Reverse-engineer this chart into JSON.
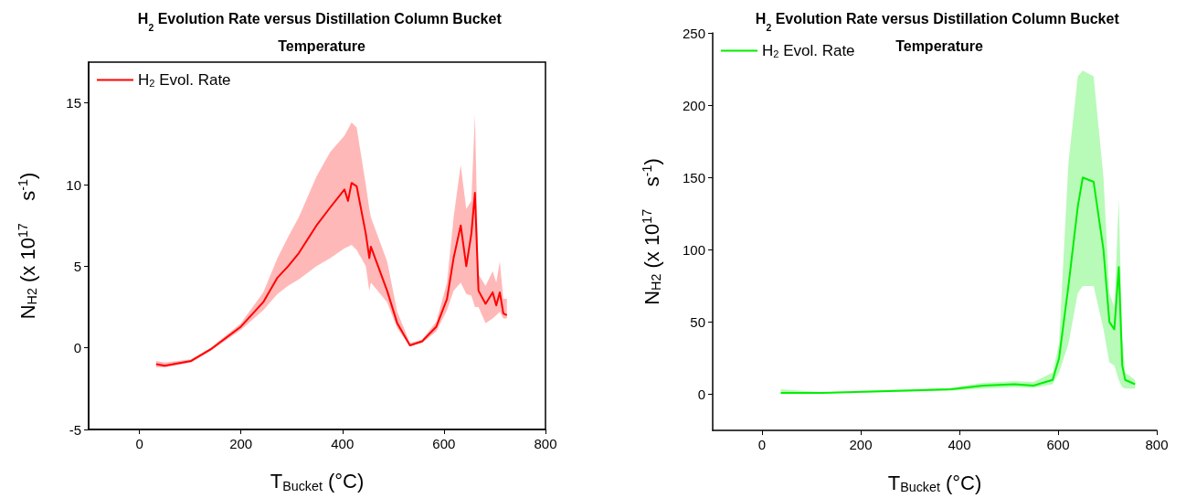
{
  "chart_data": [
    {
      "type": "line",
      "title": "H$_{2}$ Evolution Rate versus Distillation Column Bucket Temperature",
      "xlabel": "T$_{Bucket}$ (°C)",
      "ylabel": "N$_{H2}$ (x 10$^{17}$    s$^{-1}$)",
      "xlim": [
        -100,
        800
      ],
      "xticks": [
        0,
        200,
        400,
        600,
        800
      ],
      "ylim": [
        -5,
        17.5
      ],
      "yticks": [
        -5,
        0,
        5,
        10,
        15
      ],
      "grid": false,
      "legend": "top left",
      "marker": "none",
      "line_style": "solid",
      "series": [
        {
          "name": "H$_{2}$ Evol. Rate",
          "color": "#ff0000",
          "x": [
            33,
            50,
            102,
            140,
            200,
            244,
            272,
            293,
            314,
            349,
            376,
            404,
            411,
            418,
            428,
            446,
            453,
            456,
            488,
            508,
            533,
            557,
            585,
            606,
            619,
            633,
            644,
            654,
            661,
            668,
            682,
            696,
            703,
            710,
            717,
            724
          ],
          "values": [
            -1.0,
            -1.1,
            -0.8,
            -0.1,
            1.3,
            2.8,
            4.3,
            5.0,
            5.8,
            7.5,
            8.6,
            9.7,
            9.0,
            10.1,
            9.9,
            7.0,
            5.5,
            6.2,
            3.5,
            1.5,
            0.15,
            0.4,
            1.3,
            3.0,
            5.5,
            7.5,
            5.0,
            7.0,
            9.5,
            3.5,
            2.7,
            3.4,
            2.6,
            3.4,
            2.1,
            2.0
          ],
          "lower": [
            -1.2,
            -1.2,
            -0.9,
            -0.2,
            1.1,
            2.3,
            3.3,
            3.8,
            4.2,
            5.0,
            5.5,
            6.1,
            6.2,
            6.3,
            6.0,
            5.0,
            3.5,
            4.0,
            2.8,
            1.2,
            0.1,
            0.3,
            1.0,
            2.3,
            3.5,
            4.0,
            3.3,
            3.2,
            2.5,
            2.5,
            1.5,
            1.8,
            2.0,
            2.2,
            1.8,
            1.8
          ],
          "upper": [
            -0.8,
            -0.9,
            -0.7,
            0.0,
            1.5,
            3.4,
            5.5,
            6.8,
            8.0,
            10.5,
            12.0,
            13.0,
            13.4,
            13.8,
            13.5,
            10.0,
            8.5,
            8.0,
            5.3,
            2.2,
            0.3,
            0.5,
            1.6,
            4.0,
            8.0,
            11.2,
            8.5,
            9.0,
            14.3,
            4.5,
            3.8,
            4.7,
            4.0,
            5.3,
            3.0,
            3.0
          ]
        }
      ]
    },
    {
      "type": "line",
      "title": "H$_{2}$ Evolution Rate versus Distillation Column Bucket Temperature",
      "xlabel": "T$_{Bucket}$ (°C)",
      "ylabel": "N$_{H2}$ (x 10$^{17}$    s$^{-1}$)",
      "xlim": [
        -100,
        800
      ],
      "xticks": [
        0,
        200,
        400,
        600,
        800
      ],
      "ylim": [
        -25,
        250
      ],
      "yticks": [
        0,
        50,
        100,
        150,
        200,
        250
      ],
      "grid": false,
      "legend": "top left",
      "marker": "none",
      "line_style": "solid",
      "series": [
        {
          "name": "H$_{2}$ Evol. Rate",
          "color": "#00ee00",
          "x": [
            38,
            121,
            383,
            448,
            512,
            550,
            589,
            602,
            621,
            640,
            650,
            672,
            692,
            704,
            714,
            723,
            730,
            736,
            756
          ],
          "values": [
            1.0,
            1.0,
            3.5,
            6,
            7,
            6,
            10,
            25,
            75,
            130,
            150,
            147,
            100,
            50,
            45,
            88,
            20,
            10,
            7
          ],
          "lower": [
            0.5,
            0.5,
            2.5,
            4,
            5,
            4.5,
            7,
            15,
            35,
            70,
            75,
            75,
            45,
            22,
            20,
            10,
            5,
            4,
            4
          ],
          "upper": [
            3.5,
            1.5,
            4.5,
            8,
            9,
            8.5,
            15,
            35,
            160,
            220,
            224,
            220,
            150,
            70,
            60,
            135,
            40,
            15,
            10
          ]
        }
      ]
    }
  ]
}
